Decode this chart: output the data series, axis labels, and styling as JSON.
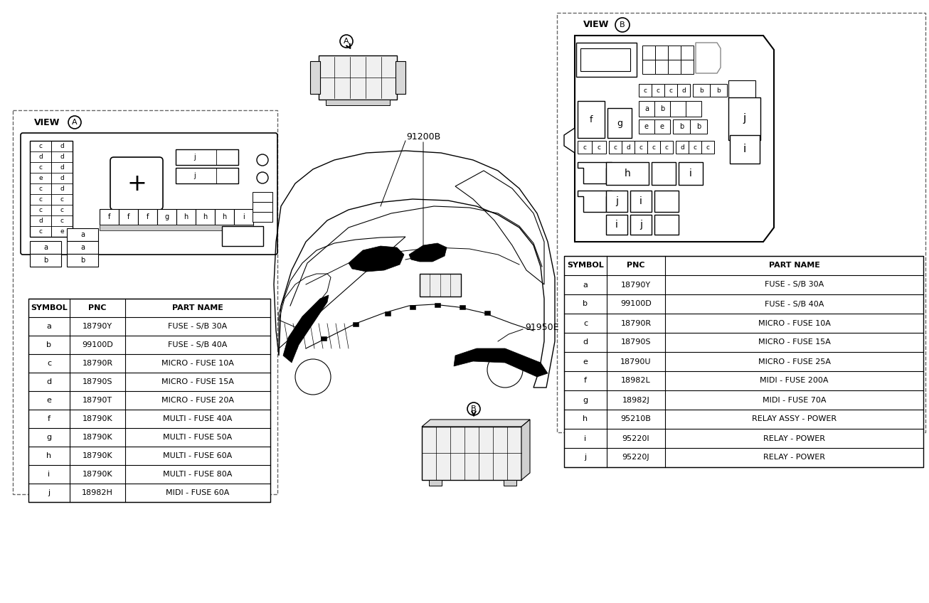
{
  "bg_color": "#ffffff",
  "left_table": {
    "headers": [
      "SYMBOL",
      "PNC",
      "PART NAME"
    ],
    "rows": [
      [
        "a",
        "18790Y",
        "FUSE - S/B 30A"
      ],
      [
        "b",
        "99100D",
        "FUSE - S/B 40A"
      ],
      [
        "c",
        "18790R",
        "MICRO - FUSE 10A"
      ],
      [
        "d",
        "18790S",
        "MICRO - FUSE 15A"
      ],
      [
        "e",
        "18790T",
        "MICRO - FUSE 20A"
      ],
      [
        "f",
        "18790K",
        "MULTI - FUSE 40A"
      ],
      [
        "g",
        "18790K",
        "MULTI - FUSE 50A"
      ],
      [
        "h",
        "18790K",
        "MULTI - FUSE 60A"
      ],
      [
        "i",
        "18790K",
        "MULTI - FUSE 80A"
      ],
      [
        "j",
        "18982H",
        "MIDI - FUSE 60A"
      ]
    ]
  },
  "right_table": {
    "headers": [
      "SYMBOL",
      "PNC",
      "PART NAME"
    ],
    "rows": [
      [
        "a",
        "18790Y",
        "FUSE - S/B 30A"
      ],
      [
        "b",
        "99100D",
        "FUSE - S/B 40A"
      ],
      [
        "c",
        "18790R",
        "MICRO - FUSE 10A"
      ],
      [
        "d",
        "18790S",
        "MICRO - FUSE 15A"
      ],
      [
        "e",
        "18790U",
        "MICRO - FUSE 25A"
      ],
      [
        "f",
        "18982L",
        "MIDI - FUSE 200A"
      ],
      [
        "g",
        "18982J",
        "MIDI - FUSE 70A"
      ],
      [
        "h",
        "95210B",
        "RELAY ASSY - POWER"
      ],
      [
        "i",
        "95220I",
        "RELAY - POWER"
      ],
      [
        "j",
        "95220J",
        "RELAY - POWER"
      ]
    ]
  },
  "part_A_code": "91200B",
  "part_B_code": "91950E",
  "view_A_label": "VIEW",
  "view_B_label": "VIEW",
  "line_color": "#000000",
  "dashed_box_color": "#666666"
}
